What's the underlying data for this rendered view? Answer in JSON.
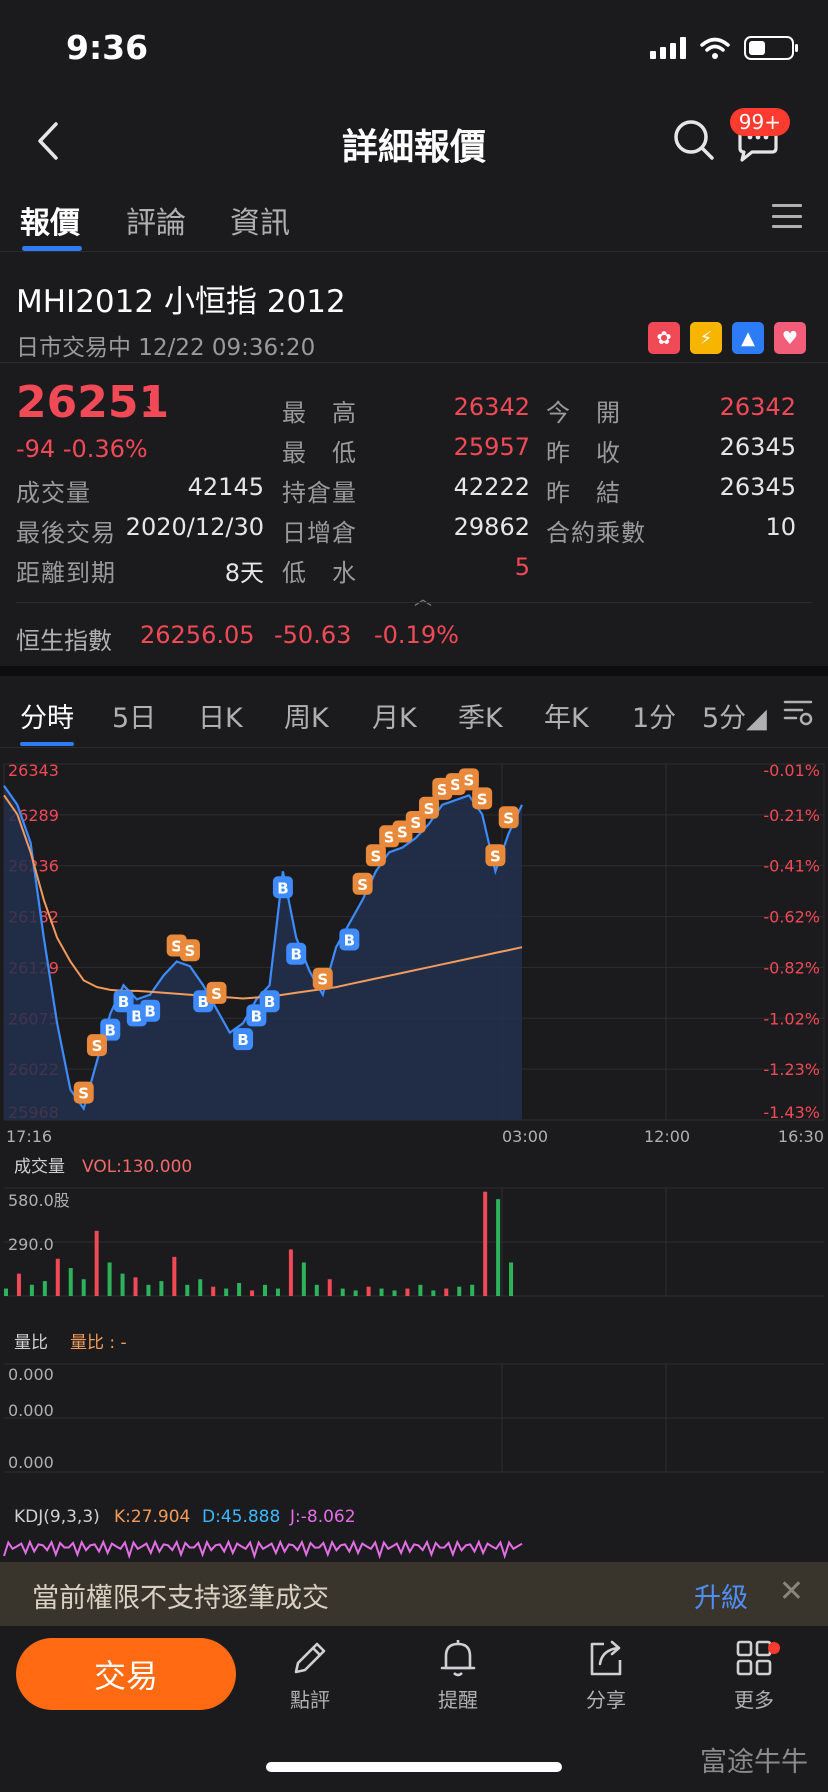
{
  "status": {
    "time": "9:36"
  },
  "nav": {
    "title": "詳細報價",
    "badge": "99+"
  },
  "tabs": [
    {
      "label": "報價",
      "active": true
    },
    {
      "label": "評論",
      "active": false
    },
    {
      "label": "資訊",
      "active": false
    }
  ],
  "stock": {
    "code_name": "MHI2012  小恒指 2012",
    "status": "日市交易中 12/22 09:36:20",
    "badges": [
      {
        "icon": "hk-flag-icon",
        "color": "#f24957",
        "glyph": "✿"
      },
      {
        "icon": "lightning-icon",
        "color": "#f7b500",
        "glyph": "⚡"
      },
      {
        "icon": "level-icon",
        "color": "#2d7cf6",
        "glyph": "▲"
      },
      {
        "icon": "heart-icon",
        "color": "#f25d7a",
        "glyph": "♥"
      }
    ]
  },
  "quote": {
    "price": "26251",
    "change": "-94  -0.36%",
    "high_label": "最　高",
    "high": "26342",
    "low_label": "最　低",
    "low": "25957",
    "open_label": "今　開",
    "open": "26342",
    "prev_close_label": "昨　收",
    "prev_close": "26345",
    "prev_settle_label": "昨　結",
    "prev_settle": "26345",
    "volume_label": "成交量",
    "volume": "42145",
    "oi_label": "持倉量",
    "oi": "42222",
    "last_trade_label": "最後交易",
    "last_trade": "2020/12/30",
    "oi_change_label": "日增倉",
    "oi_change": "29862",
    "multiplier_label": "合約乘數",
    "multiplier": "10",
    "expiry_label": "距離到期",
    "expiry": "8天",
    "discount_label": "低　水",
    "discount": "5"
  },
  "index": {
    "name": "恒生指數",
    "value": "26256.05",
    "change": "-50.63",
    "pct": "-0.19%"
  },
  "chart_tabs": [
    {
      "label": "分時",
      "active": true
    },
    {
      "label": "5日"
    },
    {
      "label": "日K"
    },
    {
      "label": "周K"
    },
    {
      "label": "月K"
    },
    {
      "label": "季K"
    },
    {
      "label": "年K"
    },
    {
      "label": "1分"
    },
    {
      "label": "5分◢"
    }
  ],
  "chart_data": {
    "type": "line",
    "y_left_ticks": [
      "26343",
      "26289",
      "26236",
      "26182",
      "26129",
      "26075",
      "26022",
      "25968"
    ],
    "y_right_ticks": [
      "-0.01%",
      "-0.21%",
      "-0.41%",
      "-0.62%",
      "-0.82%",
      "-1.02%",
      "-1.23%",
      "-1.43%"
    ],
    "x_ticks": [
      "17:16",
      "03:00",
      "12:00",
      "16:30"
    ],
    "ylim": [
      25968,
      26343
    ],
    "price_series": [
      26320,
      26300,
      26260,
      26160,
      26070,
      26000,
      25980,
      26030,
      26080,
      26110,
      26095,
      26100,
      26120,
      26135,
      26130,
      26110,
      26085,
      26060,
      26070,
      26095,
      26110,
      26230,
      26160,
      26125,
      26100,
      26150,
      26175,
      26200,
      26230,
      26250,
      26255,
      26265,
      26280,
      26300,
      26305,
      26310,
      26290,
      26230,
      26270,
      26300
    ],
    "avg_series": [
      26310,
      26290,
      26250,
      26200,
      26160,
      26135,
      26115,
      26108,
      26105,
      26104,
      26104,
      26103,
      26102,
      26101,
      26100,
      26099,
      26098,
      26097,
      26096,
      26097,
      26098,
      26100,
      26102,
      26104,
      26106,
      26108,
      26111,
      26114,
      26117,
      26120,
      26123,
      26126,
      26129,
      26132,
      26135,
      26138,
      26141,
      26144,
      26147,
      26150
    ],
    "buy_markers": [
      8,
      9,
      10,
      11,
      15,
      18,
      19,
      20,
      21,
      22,
      26
    ],
    "sell_markers": [
      6,
      7,
      13,
      14,
      16,
      24,
      27,
      28,
      29,
      30,
      31,
      32,
      33,
      34,
      35,
      36,
      37,
      38
    ],
    "volume": {
      "label": "成交量",
      "value_label": "VOL:130.000",
      "ticks": [
        "580.0股",
        "290.0"
      ],
      "ylim": [
        0,
        580
      ],
      "bars": [
        40,
        120,
        60,
        80,
        200,
        150,
        90,
        350,
        180,
        120,
        100,
        60,
        80,
        210,
        60,
        90,
        50,
        40,
        70,
        30,
        60,
        40,
        250,
        180,
        60,
        90,
        40,
        30,
        50,
        40,
        30,
        40,
        60,
        30,
        40,
        50,
        60,
        560,
        520,
        180
      ]
    },
    "volume_ratio": {
      "label": "量比",
      "value_label": "量比 : -",
      "ticks": [
        "0.000",
        "0.000",
        "0.000"
      ]
    },
    "kdj": {
      "label": "KDJ(9,3,3)",
      "k": "K:27.904",
      "d": "D:45.888",
      "j": "J:-8.062"
    }
  },
  "banner": {
    "text": "當前權限不支持逐筆成交",
    "link": "升級"
  },
  "bottom": {
    "trade": "交易",
    "items": [
      {
        "label": "點評",
        "icon": "pencil-icon"
      },
      {
        "label": "提醒",
        "icon": "bell-icon"
      },
      {
        "label": "分享",
        "icon": "share-icon"
      },
      {
        "label": "更多",
        "icon": "grid-icon"
      }
    ],
    "brand": "富途牛牛"
  },
  "colors": {
    "accent_blue": "#2d7cf6",
    "red": "#f24957",
    "orange": "#ff6a13",
    "line_blue": "#3d8bff",
    "avg_orange": "#f29b5c",
    "green": "#2db35c"
  }
}
